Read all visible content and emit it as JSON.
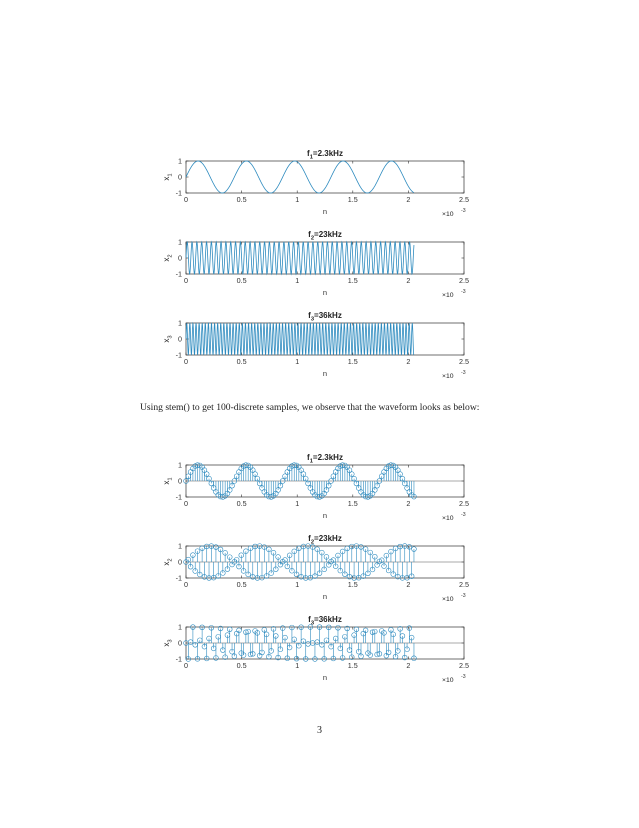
{
  "paragraph": "Using stem() to get 100-discrete samples, we observe that the waveform looks as below:",
  "page_number": "3",
  "chart_data": [
    {
      "type": "line",
      "title": "f₁=2.3kHz",
      "title_main": "f",
      "title_sub": "1",
      "title_rest": "=2.3kHz",
      "ylabel_main": "x",
      "ylabel_sub": "1",
      "xlabel": "n",
      "xlim": [
        0,
        0.0025
      ],
      "ylim": [
        -1,
        1
      ],
      "xticks": [
        "0",
        "0.5",
        "1",
        "1.5",
        "2",
        "2.5"
      ],
      "yticks": [
        "-1",
        "0",
        "1"
      ],
      "exponent_base": "×10",
      "exponent_power": "-3",
      "series": [
        {
          "frequency_hz": 2300,
          "duration_s": 0.00205
        }
      ]
    },
    {
      "type": "line",
      "title": "f₂=23kHz",
      "title_main": "f",
      "title_sub": "2",
      "title_rest": "=23kHz",
      "ylabel_main": "x",
      "ylabel_sub": "2",
      "xlabel": "n",
      "xlim": [
        0,
        0.0025
      ],
      "ylim": [
        -1,
        1
      ],
      "xticks": [
        "0",
        "0.5",
        "1",
        "1.5",
        "2",
        "2.5"
      ],
      "yticks": [
        "-1",
        "0",
        "1"
      ],
      "exponent_base": "×10",
      "exponent_power": "-3",
      "series": [
        {
          "frequency_hz": 23000,
          "duration_s": 0.00205
        }
      ]
    },
    {
      "type": "line",
      "title": "f₃=36kHz",
      "title_main": "f",
      "title_sub": "3",
      "title_rest": "=36kHz",
      "ylabel_main": "x",
      "ylabel_sub": "3",
      "xlabel": "n",
      "xlim": [
        0,
        0.0025
      ],
      "ylim": [
        -1,
        1
      ],
      "xticks": [
        "0",
        "0.5",
        "1",
        "1.5",
        "2",
        "2.5"
      ],
      "yticks": [
        "-1",
        "0",
        "1"
      ],
      "exponent_base": "×10",
      "exponent_power": "-3",
      "series": [
        {
          "frequency_hz": 36000,
          "duration_s": 0.00205
        }
      ]
    },
    {
      "type": "stem",
      "title": "f₁=2.3kHz",
      "title_main": "f",
      "title_sub": "1",
      "title_rest": "=2.3kHz",
      "ylabel_main": "x",
      "ylabel_sub": "1",
      "xlabel": "n",
      "xlim": [
        0,
        0.0025
      ],
      "ylim": [
        -1,
        1
      ],
      "xticks": [
        "0",
        "0.5",
        "1",
        "1.5",
        "2",
        "2.5"
      ],
      "yticks": [
        "-1",
        "0",
        "1"
      ],
      "exponent_base": "×10",
      "exponent_power": "-3",
      "series": [
        {
          "frequency_hz": 2300,
          "duration_s": 0.00205,
          "samples": 100
        }
      ]
    },
    {
      "type": "stem",
      "title": "f₂=23kHz",
      "title_main": "f",
      "title_sub": "2",
      "title_rest": "=23kHz",
      "ylabel_main": "x",
      "ylabel_sub": "2",
      "xlabel": "n",
      "xlim": [
        0,
        0.0025
      ],
      "ylim": [
        -1,
        1
      ],
      "xticks": [
        "0",
        "0.5",
        "1",
        "1.5",
        "2",
        "2.5"
      ],
      "yticks": [
        "-1",
        "0",
        "1"
      ],
      "exponent_base": "×10",
      "exponent_power": "-3",
      "series": [
        {
          "frequency_hz": 23000,
          "duration_s": 0.00205,
          "samples": 100
        }
      ]
    },
    {
      "type": "stem",
      "title": "f₃=36kHz",
      "title_main": "f",
      "title_sub": "3",
      "title_rest": "=36kHz",
      "ylabel_main": "x",
      "ylabel_sub": "3",
      "xlabel": "n",
      "xlim": [
        0,
        0.0025
      ],
      "ylim": [
        -1,
        1
      ],
      "xticks": [
        "0",
        "0.5",
        "1",
        "1.5",
        "2",
        "2.5"
      ],
      "yticks": [
        "-1",
        "0",
        "1"
      ],
      "exponent_base": "×10",
      "exponent_power": "-3",
      "series": [
        {
          "frequency_hz": 36000,
          "duration_s": 0.00205,
          "samples": 100
        }
      ]
    }
  ]
}
